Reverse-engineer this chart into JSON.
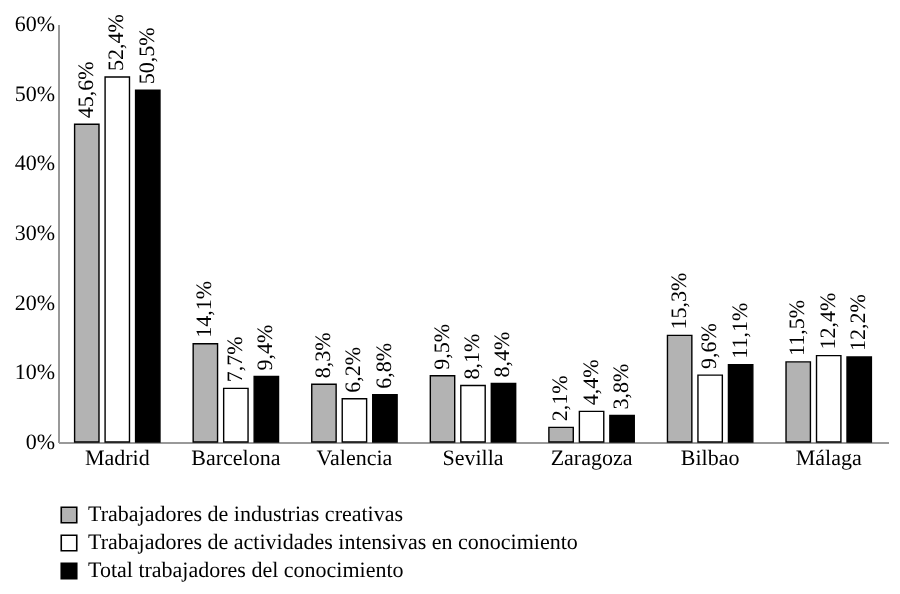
{
  "chart_data": {
    "type": "bar",
    "categories": [
      "Madrid",
      "Barcelona",
      "Valencia",
      "Sevilla",
      "Zaragoza",
      "Bilbao",
      "Málaga"
    ],
    "series": [
      {
        "name": "Trabajadores de industrias creativas",
        "color": "#b3b3b3",
        "values": [
          45.6,
          14.1,
          8.3,
          9.5,
          2.1,
          15.3,
          11.5
        ],
        "value_labels": [
          "45,6%",
          "14,1%",
          "8,3%",
          "9,5%",
          "2,1%",
          "15,3%",
          "11,5%"
        ]
      },
      {
        "name": "Trabajadores de actividades intensivas en conocimiento",
        "color": "#ffffff",
        "values": [
          52.4,
          7.7,
          6.2,
          8.1,
          4.4,
          9.6,
          12.4
        ],
        "value_labels": [
          "52,4%",
          "7,7%",
          "6,2%",
          "8,1%",
          "4,4%",
          "9,6%",
          "12,4%"
        ]
      },
      {
        "name": "Total trabajadores del conocimiento",
        "color": "#000000",
        "values": [
          50.5,
          9.4,
          6.8,
          8.4,
          3.8,
          11.1,
          12.2
        ],
        "value_labels": [
          "50,5%",
          "9,4%",
          "6,8%",
          "8,4%",
          "3,8%",
          "11,1%",
          "12,2%"
        ]
      }
    ],
    "ylim": [
      0,
      60
    ],
    "yticks": [
      {
        "value": 0,
        "label": "0%"
      },
      {
        "value": 10,
        "label": "10%"
      },
      {
        "value": 20,
        "label": "20%"
      },
      {
        "value": 30,
        "label": "30%"
      },
      {
        "value": 40,
        "label": "40%"
      },
      {
        "value": 50,
        "label": "50%"
      },
      {
        "value": 60,
        "label": "60%"
      }
    ],
    "grid": false,
    "legend": "bottom"
  }
}
